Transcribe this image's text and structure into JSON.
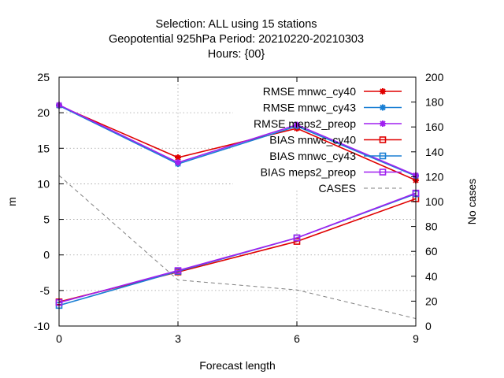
{
  "chart_data": {
    "type": "line",
    "title_lines": [
      "Selection: ALL using    15 stations",
      "Geopotential 925hPa   Period: 20210220-20210303",
      "Hours: {00}"
    ],
    "xlabel": "Forecast length",
    "ylabel": "m",
    "y2label": "No cases",
    "x": [
      0,
      3,
      6,
      9
    ],
    "xlim": [
      0,
      9
    ],
    "ylim": [
      -10,
      25
    ],
    "y2lim": [
      0,
      200
    ],
    "xticks": [
      "0",
      "3",
      "6",
      "9"
    ],
    "yticks": [
      "-10",
      "-5",
      "0",
      "5",
      "10",
      "15",
      "20",
      "25"
    ],
    "y2ticks": [
      "0",
      "20",
      "40",
      "60",
      "80",
      "100",
      "120",
      "140",
      "160",
      "180",
      "200"
    ],
    "grid": "dotted at x ticks and y ticks",
    "legend_position": "top-right inside",
    "series": [
      {
        "name": "RMSE mnwc_cy40",
        "values": [
          21.0,
          13.7,
          17.8,
          10.5
        ],
        "color": "#e00000",
        "marker": "star",
        "axis": "y"
      },
      {
        "name": "RMSE mnwc_cy43",
        "values": [
          21.0,
          12.8,
          18.1,
          11.1
        ],
        "color": "#1a7fd4",
        "marker": "star",
        "axis": "y"
      },
      {
        "name": "RMSE meps2_preop",
        "values": [
          21.1,
          13.0,
          18.3,
          11.2
        ],
        "color": "#a020f0",
        "marker": "star",
        "axis": "y"
      },
      {
        "name": "BIAS mnwc_cy40",
        "values": [
          -6.6,
          -2.4,
          1.9,
          7.9
        ],
        "color": "#e00000",
        "marker": "square",
        "axis": "y"
      },
      {
        "name": "BIAS mnwc_cy43",
        "values": [
          -7.1,
          -2.3,
          2.4,
          8.6
        ],
        "color": "#1a7fd4",
        "marker": "square",
        "axis": "y"
      },
      {
        "name": "BIAS meps2_preop",
        "values": [
          -6.7,
          -2.2,
          2.4,
          8.7
        ],
        "color": "#a020f0",
        "marker": "square",
        "axis": "y"
      },
      {
        "name": "CASES",
        "values": [
          121,
          37,
          29,
          6
        ],
        "color": "#808080",
        "marker": "none",
        "dashed": true,
        "axis": "y2"
      }
    ]
  }
}
